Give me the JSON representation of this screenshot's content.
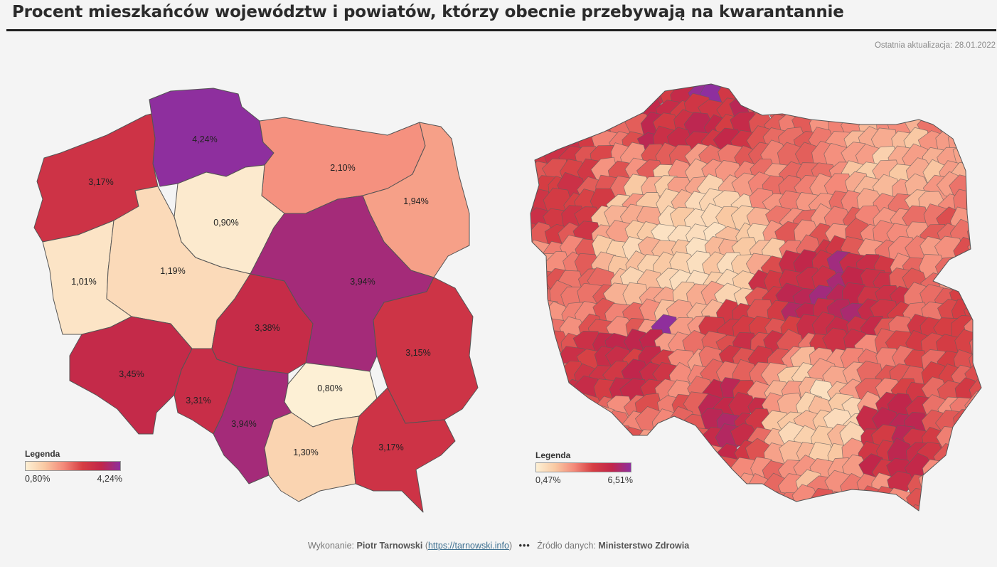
{
  "title": "Procent mieszkańców województw i powiatów, którzy obecnie przebywają na kwarantannie",
  "updated": "Ostatnia aktualizacja: 28.01.2022",
  "colors": {
    "scale": [
      "#fdf0d5",
      "#f9c9a3",
      "#f48a7a",
      "#d63e43",
      "#c1264a",
      "#8e2f9e"
    ],
    "outline": "#555555"
  },
  "left_map": {
    "legend": {
      "title": "Legenda",
      "min": "0,80%",
      "max": "4,24%"
    },
    "voivodeships": [
      {
        "id": "pomorskie",
        "label": "4,24%",
        "value": 4.24
      },
      {
        "id": "zachodniopomorskie",
        "label": "3,17%",
        "value": 3.17
      },
      {
        "id": "warminsko-mazurskie",
        "label": "2,10%",
        "value": 2.1
      },
      {
        "id": "podlaskie",
        "label": "1,94%",
        "value": 1.94
      },
      {
        "id": "kujawsko-pomorskie",
        "label": "0,90%",
        "value": 0.9
      },
      {
        "id": "lubuskie",
        "label": "1,01%",
        "value": 1.01
      },
      {
        "id": "wielkopolskie",
        "label": "1,19%",
        "value": 1.19
      },
      {
        "id": "mazowieckie",
        "label": "3,94%",
        "value": 3.94
      },
      {
        "id": "lodzkie",
        "label": "3,38%",
        "value": 3.38
      },
      {
        "id": "lubelskie",
        "label": "3,15%",
        "value": 3.15
      },
      {
        "id": "dolnoslaskie",
        "label": "3,45%",
        "value": 3.45
      },
      {
        "id": "opolskie",
        "label": "3,31%",
        "value": 3.31
      },
      {
        "id": "slaskie",
        "label": "3,94%",
        "value": 3.94
      },
      {
        "id": "swietokrzyskie",
        "label": "0,80%",
        "value": 0.8
      },
      {
        "id": "malopolskie",
        "label": "1,30%",
        "value": 1.3
      },
      {
        "id": "podkarpackie",
        "label": "3,17%",
        "value": 3.17
      }
    ]
  },
  "right_map": {
    "legend": {
      "title": "Legenda",
      "min": "0,47%",
      "max": "6,51%"
    }
  },
  "footer": {
    "made_by_label": "Wykonanie:",
    "author": "Piotr Tarnowski",
    "link": "https://tarnowski.info",
    "separator": "•••",
    "source_label": "Źródło danych:",
    "source": "Ministerstwo Zdrowia"
  }
}
